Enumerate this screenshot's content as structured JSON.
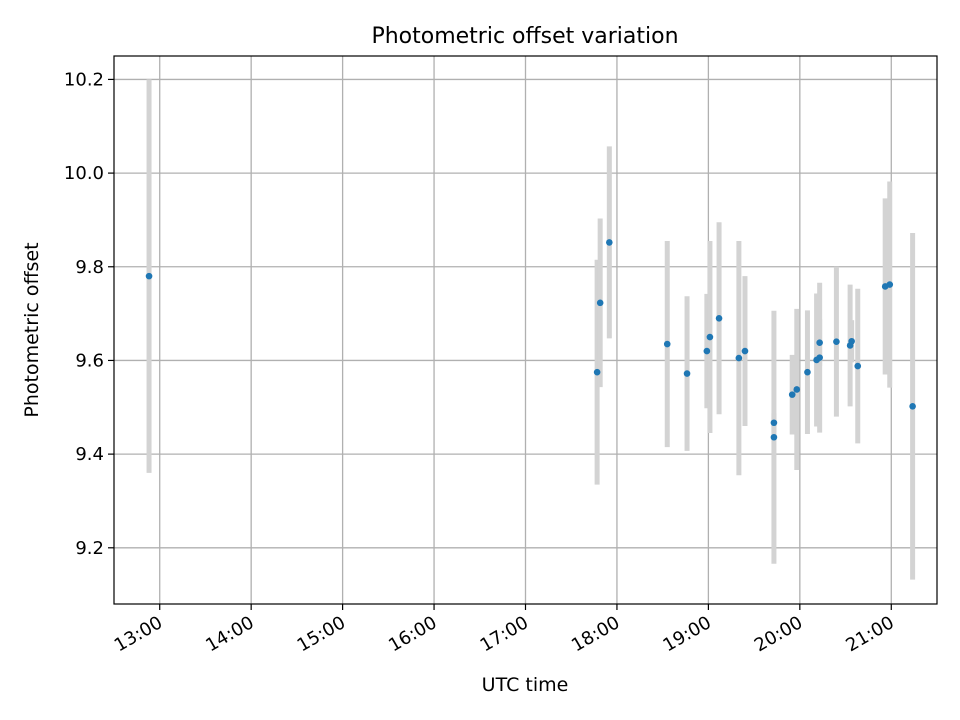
{
  "chart_data": {
    "type": "scatter",
    "title": "Photometric offset variation",
    "xlabel": "UTC time",
    "ylabel": "Photometric offset",
    "x_ticks": [
      "13:00",
      "14:00",
      "15:00",
      "16:00",
      "17:00",
      "18:00",
      "19:00",
      "20:00",
      "21:00"
    ],
    "x_tick_values": [
      "13:00",
      "14:00",
      "15:00",
      "16:00",
      "17:00",
      "18:00",
      "19:00",
      "20:00",
      "21:00"
    ],
    "y_ticks": [
      "9.2",
      "9.4",
      "9.6",
      "9.8",
      "10.0",
      "10.2"
    ],
    "y_tick_values": [
      9.2,
      9.4,
      9.6,
      9.8,
      10.0,
      10.2
    ],
    "xlim": [
      "12:30",
      "21:30"
    ],
    "ylim": [
      9.08,
      10.25
    ],
    "grid": true,
    "colors": {
      "point": "#1f77b4",
      "errorbar": "#d3d3d3",
      "grid": "#b0b0b0"
    },
    "points": [
      {
        "x": "12:53",
        "y": 9.78,
        "err": 0.42
      },
      {
        "x": "17:47",
        "y": 9.575,
        "err": 0.24
      },
      {
        "x": "17:49",
        "y": 9.723,
        "err": 0.18
      },
      {
        "x": "17:55",
        "y": 9.852,
        "err": 0.205
      },
      {
        "x": "18:33",
        "y": 9.635,
        "err": 0.22
      },
      {
        "x": "18:46",
        "y": 9.572,
        "err": 0.165
      },
      {
        "x": "18:59",
        "y": 9.62,
        "err": 0.122
      },
      {
        "x": "19:01",
        "y": 9.65,
        "err": 0.205
      },
      {
        "x": "19:07",
        "y": 9.69,
        "err": 0.205
      },
      {
        "x": "19:20",
        "y": 9.605,
        "err": 0.25
      },
      {
        "x": "19:24",
        "y": 9.62,
        "err": 0.16
      },
      {
        "x": "19:43",
        "y": 9.467,
        "err": 0.02
      },
      {
        "x": "19:43",
        "y": 9.436,
        "err": 0.27
      },
      {
        "x": "19:55",
        "y": 9.527,
        "err": 0.085
      },
      {
        "x": "19:58",
        "y": 9.538,
        "err": 0.172
      },
      {
        "x": "20:05",
        "y": 9.575,
        "err": 0.132
      },
      {
        "x": "20:11",
        "y": 9.601,
        "err": 0.142
      },
      {
        "x": "20:13",
        "y": 9.606,
        "err": 0.16
      },
      {
        "x": "20:13",
        "y": 9.638,
        "err": 0.05
      },
      {
        "x": "20:24",
        "y": 9.64,
        "err": 0.16
      },
      {
        "x": "20:33",
        "y": 9.632,
        "err": 0.13
      },
      {
        "x": "20:34",
        "y": 9.641,
        "err": 0.045
      },
      {
        "x": "20:38",
        "y": 9.588,
        "err": 0.165
      },
      {
        "x": "20:56",
        "y": 9.758,
        "err": 0.188
      },
      {
        "x": "20:59",
        "y": 9.762,
        "err": 0.22
      },
      {
        "x": "21:14",
        "y": 9.502,
        "err": 0.37
      }
    ]
  }
}
